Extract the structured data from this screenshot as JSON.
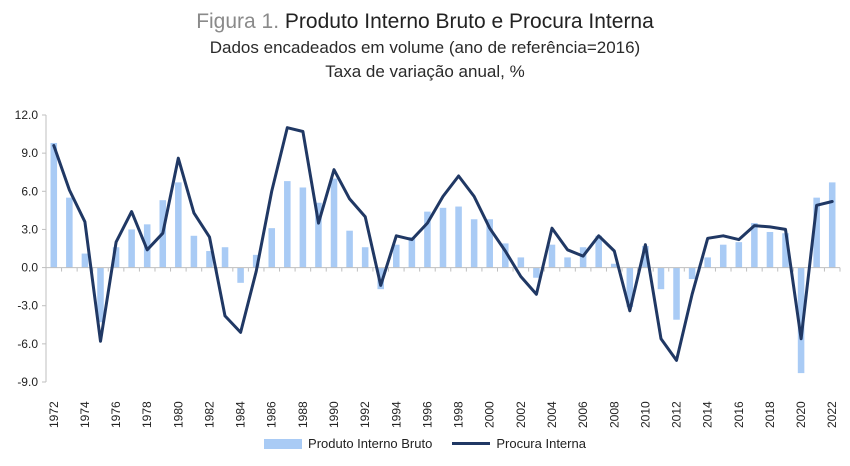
{
  "title": {
    "prefix": "Figura 1.",
    "main": "Produto Interno Bruto e Procura Interna",
    "subtitle1": "Dados encadeados em volume (ano de referência=2016)",
    "subtitle2": "Taxa de variação anual, %"
  },
  "colors": {
    "bar": "#a9cbf5",
    "line": "#203864",
    "axis": "#bfbfbf",
    "grid": "#d9d9d9"
  },
  "chart_data": {
    "type": "bar",
    "ylim": [
      -9,
      12
    ],
    "yticks": [
      "12.0",
      "9.0",
      "6.0",
      "3.0",
      "0.0",
      "-3.0",
      "-6.0",
      "-9.0"
    ],
    "ytick_values": [
      12,
      9,
      6,
      3,
      0,
      -3,
      -6,
      -9
    ],
    "xtick_labels": [
      "1972",
      "1974",
      "1976",
      "1978",
      "1980",
      "1982",
      "1984",
      "1986",
      "1988",
      "1990",
      "1992",
      "1994",
      "1996",
      "1998",
      "2000",
      "2002",
      "2004",
      "2006",
      "2008",
      "2010",
      "2012",
      "2014",
      "2016",
      "2018",
      "2020",
      "2022"
    ],
    "categories": [
      "1972",
      "1973",
      "1974",
      "1975",
      "1976",
      "1977",
      "1978",
      "1979",
      "1980",
      "1981",
      "1982",
      "1983",
      "1984",
      "1985",
      "1986",
      "1987",
      "1988",
      "1989",
      "1990",
      "1991",
      "1992",
      "1993",
      "1994",
      "1995",
      "1996",
      "1997",
      "1998",
      "1999",
      "2000",
      "2001",
      "2002",
      "2003",
      "2004",
      "2005",
      "2006",
      "2007",
      "2008",
      "2009",
      "2010",
      "2011",
      "2012",
      "2013",
      "2014",
      "2015",
      "2016",
      "2017",
      "2018",
      "2019",
      "2020",
      "2021",
      "2022"
    ],
    "grid": false,
    "legend_position": "bottom",
    "series": [
      {
        "name": "Produto Interno Bruto",
        "kind": "bar",
        "values": [
          9.8,
          5.5,
          1.1,
          -4.3,
          1.6,
          3.0,
          3.4,
          5.3,
          6.7,
          2.5,
          1.3,
          1.6,
          -1.2,
          1.0,
          3.1,
          6.8,
          6.3,
          5.1,
          7.0,
          2.9,
          1.6,
          -1.7,
          1.8,
          2.4,
          4.4,
          4.7,
          4.8,
          3.8,
          3.8,
          1.9,
          0.8,
          -0.8,
          1.8,
          0.8,
          1.6,
          2.5,
          0.3,
          -3.1,
          1.7,
          -1.7,
          -4.1,
          -0.9,
          0.8,
          1.8,
          2.0,
          3.5,
          2.8,
          2.7,
          -8.3,
          5.5,
          6.7
        ]
      },
      {
        "name": "Procura Interna",
        "kind": "line",
        "values": [
          9.6,
          6.1,
          3.6,
          -5.8,
          2.0,
          4.4,
          1.4,
          2.7,
          8.6,
          4.3,
          2.4,
          -3.8,
          -5.1,
          -0.3,
          6.0,
          11.0,
          10.7,
          3.5,
          7.7,
          5.4,
          4.0,
          -1.4,
          2.5,
          2.2,
          3.5,
          5.6,
          7.2,
          5.6,
          3.1,
          1.3,
          -0.7,
          -2.1,
          3.1,
          1.4,
          0.9,
          2.5,
          1.3,
          -3.4,
          1.8,
          -5.6,
          -7.3,
          -2.1,
          2.3,
          2.5,
          2.2,
          3.3,
          3.2,
          3.0,
          -5.6,
          4.9,
          5.2
        ]
      }
    ]
  }
}
